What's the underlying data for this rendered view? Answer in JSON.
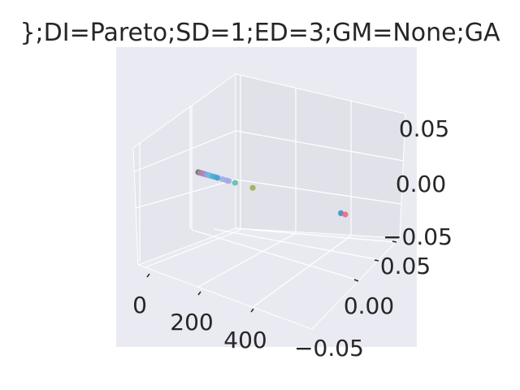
{
  "chart_data": {
    "type": "scatter",
    "projection": "3d",
    "title": "};DI=Pareto;SD=1;ED=3;GM=None;GA",
    "xlabel": "",
    "ylabel": "",
    "zlabel": "",
    "grid": true,
    "x_ticks": [
      "0",
      "200",
      "400"
    ],
    "y_ticks": [
      "−0.05",
      "0.00",
      "0.05"
    ],
    "z_ticks": [
      "−0.05",
      "0.00",
      "0.05"
    ],
    "xlim": [
      -20,
      560
    ],
    "ylim": [
      -0.06,
      0.06
    ],
    "zlim": [
      -0.06,
      0.06
    ],
    "points": [
      {
        "x": 0,
        "y": 0,
        "z": 0,
        "color": "#6b6b6b"
      },
      {
        "x": 3,
        "y": 0,
        "z": 0,
        "color": "#7a7a7a"
      },
      {
        "x": 6,
        "y": 0,
        "z": 0,
        "color": "#8a8a8a"
      },
      {
        "x": 9,
        "y": 0,
        "z": 0,
        "color": "#9a9a9a"
      },
      {
        "x": 12,
        "y": 0,
        "z": 0,
        "color": "#a88a9a"
      },
      {
        "x": 16,
        "y": 0,
        "z": 0,
        "color": "#c77aa0"
      },
      {
        "x": 20,
        "y": 0,
        "z": 0,
        "color": "#9b8ac8"
      },
      {
        "x": 25,
        "y": 0,
        "z": 0,
        "color": "#a48fd4"
      },
      {
        "x": 30,
        "y": 0,
        "z": 0,
        "color": "#8fa0d8"
      },
      {
        "x": 36,
        "y": 0,
        "z": 0,
        "color": "#7fb4e0"
      },
      {
        "x": 42,
        "y": 0,
        "z": 0,
        "color": "#6ab8e0"
      },
      {
        "x": 49,
        "y": 0,
        "z": 0,
        "color": "#54b0d8"
      },
      {
        "x": 57,
        "y": 0,
        "z": 0,
        "color": "#4aa8d4"
      },
      {
        "x": 66,
        "y": 0,
        "z": 0,
        "color": "#42a0cc"
      },
      {
        "x": 83,
        "y": 0,
        "z": 0,
        "color": "#9ab0e8"
      },
      {
        "x": 95,
        "y": 0,
        "z": 0,
        "color": "#a8a8e8"
      },
      {
        "x": 104,
        "y": 0,
        "z": 0,
        "color": "#9fa6e6"
      },
      {
        "x": 125,
        "y": 0,
        "z": 0,
        "color": "#5cc0a8"
      },
      {
        "x": 185,
        "y": 0,
        "z": 0,
        "color": "#9ab04e"
      },
      {
        "x": 485,
        "y": 0,
        "z": 0,
        "color": "#3a93c4"
      },
      {
        "x": 500,
        "y": 0,
        "z": 0,
        "color": "#f06a78"
      }
    ]
  }
}
